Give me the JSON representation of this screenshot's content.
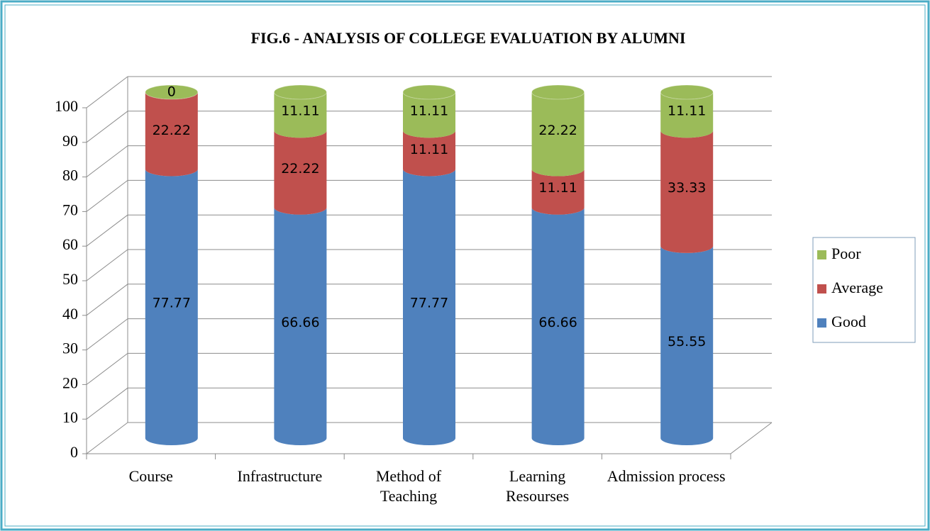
{
  "chart_data": {
    "type": "bar3d",
    "title": "FIG.6 - ANALYSIS OF COLLEGE EVALUATION BY ALUMNI",
    "categories": [
      "Course",
      "Infrastructure",
      "Method of Teaching",
      "Learning Resourses",
      "Admission process"
    ],
    "stacked": true,
    "series": [
      {
        "name": "Good",
        "color": "#4f81bd",
        "values": [
          77.77,
          66.66,
          77.77,
          66.66,
          55.55
        ]
      },
      {
        "name": "Average",
        "color": "#c0504d",
        "values": [
          22.22,
          22.22,
          11.11,
          11.11,
          33.33
        ]
      },
      {
        "name": "Poor",
        "color": "#9bbb59",
        "values": [
          0,
          11.11,
          11.11,
          22.22,
          11.11
        ]
      }
    ],
    "ylim": [
      0,
      100
    ],
    "yticks": [
      0,
      10,
      20,
      30,
      40,
      50,
      60,
      70,
      80,
      90,
      100
    ],
    "grid": true,
    "legend": "right"
  }
}
